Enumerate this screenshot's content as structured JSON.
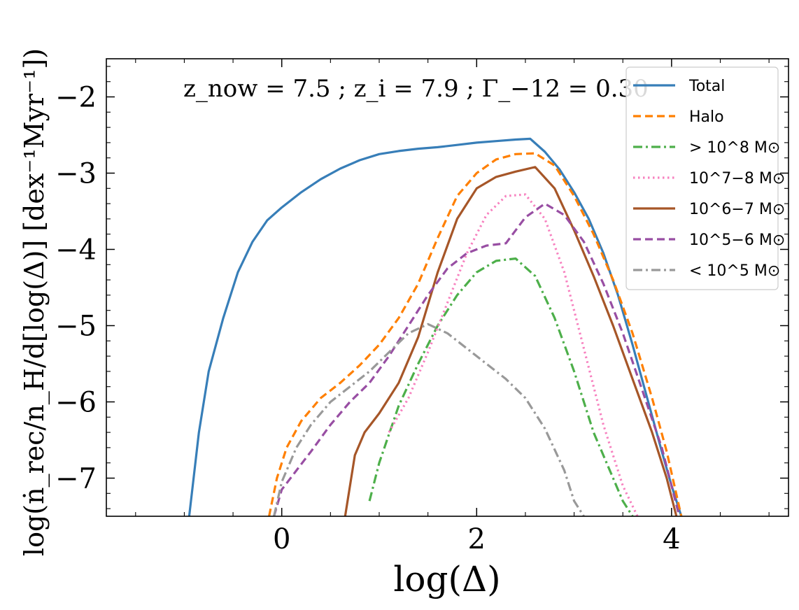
{
  "chart_data": {
    "type": "line",
    "xlabel": "log(Δ)",
    "ylabel": "log(ṅ_rec/n_H/d[log(Δ)] [dex⁻¹Myr⁻¹])",
    "annotation": "z_now = 7.5 ; z_i = 7.9 ; Γ_−12 = 0.30",
    "xlim": [
      -1.8,
      5.2
    ],
    "ylim": [
      -7.5,
      -1.5
    ],
    "xticks": [
      0,
      2,
      4
    ],
    "xtick_labels": [
      "0",
      "2",
      "4"
    ],
    "yticks": [
      -7,
      -6,
      -5,
      -4,
      -3,
      -2
    ],
    "ytick_labels": [
      "−7",
      "−6",
      "−5",
      "−4",
      "−3",
      "−2"
    ],
    "legend_position": "top-right",
    "grid": false,
    "series": [
      {
        "name": "Total",
        "color": "#377eb8",
        "style": "solid",
        "x": [
          -0.95,
          -0.85,
          -0.75,
          -0.6,
          -0.45,
          -0.3,
          -0.15,
          0.0,
          0.2,
          0.4,
          0.6,
          0.8,
          1.0,
          1.2,
          1.4,
          1.6,
          1.8,
          2.0,
          2.2,
          2.4,
          2.55,
          2.7,
          2.85,
          3.0,
          3.15,
          3.3,
          3.45,
          3.6,
          3.75,
          3.9,
          4.0,
          4.1
        ],
        "y": [
          -7.5,
          -6.4,
          -5.6,
          -4.9,
          -4.3,
          -3.9,
          -3.62,
          -3.45,
          -3.25,
          -3.08,
          -2.94,
          -2.83,
          -2.75,
          -2.71,
          -2.68,
          -2.66,
          -2.63,
          -2.6,
          -2.58,
          -2.56,
          -2.55,
          -2.72,
          -2.95,
          -3.25,
          -3.6,
          -4.05,
          -4.6,
          -5.25,
          -5.95,
          -6.65,
          -7.1,
          -7.5
        ]
      },
      {
        "name": "Halo",
        "color": "#ff7f00",
        "style": "dashed",
        "x": [
          -0.13,
          -0.05,
          0.05,
          0.2,
          0.4,
          0.6,
          0.8,
          1.0,
          1.2,
          1.4,
          1.6,
          1.8,
          2.0,
          2.2,
          2.4,
          2.6,
          2.8,
          3.0,
          3.2,
          3.4,
          3.6,
          3.8,
          3.95,
          4.1
        ],
        "y": [
          -7.5,
          -7.0,
          -6.6,
          -6.25,
          -5.95,
          -5.75,
          -5.52,
          -5.25,
          -4.9,
          -4.45,
          -3.85,
          -3.3,
          -3.0,
          -2.82,
          -2.75,
          -2.74,
          -2.9,
          -3.3,
          -3.8,
          -4.4,
          -5.1,
          -5.95,
          -6.65,
          -7.5
        ]
      },
      {
        "name": "> 10^8 M⊙",
        "color": "#4daf4a",
        "style": "dashdot",
        "x": [
          0.9,
          1.0,
          1.2,
          1.4,
          1.6,
          1.8,
          2.0,
          2.2,
          2.4,
          2.6,
          2.8,
          3.0,
          3.2,
          3.4,
          3.5,
          3.6
        ],
        "y": [
          -7.3,
          -6.8,
          -6.05,
          -5.5,
          -5.0,
          -4.6,
          -4.3,
          -4.15,
          -4.12,
          -4.35,
          -4.9,
          -5.6,
          -6.4,
          -7.0,
          -7.3,
          -7.5
        ]
      },
      {
        "name": "10^7−8 M⊙",
        "color": "#f781bf",
        "style": "dotted",
        "x": [
          1.1,
          1.3,
          1.5,
          1.7,
          1.9,
          2.1,
          2.3,
          2.5,
          2.7,
          2.9,
          3.1,
          3.3,
          3.5,
          3.65
        ],
        "y": [
          -6.4,
          -5.95,
          -5.35,
          -4.7,
          -4.05,
          -3.55,
          -3.3,
          -3.28,
          -3.6,
          -4.3,
          -5.3,
          -6.3,
          -7.1,
          -7.5
        ]
      },
      {
        "name": "10^6−7 M⊙",
        "color": "#a65628",
        "style": "solid",
        "x": [
          0.65,
          0.75,
          0.85,
          1.0,
          1.2,
          1.4,
          1.6,
          1.8,
          2.0,
          2.2,
          2.4,
          2.6,
          2.8,
          3.0,
          3.2,
          3.4,
          3.6,
          3.8,
          3.95,
          4.05
        ],
        "y": [
          -7.5,
          -6.7,
          -6.4,
          -6.15,
          -5.75,
          -5.15,
          -4.3,
          -3.6,
          -3.2,
          -3.05,
          -2.98,
          -2.92,
          -3.2,
          -3.75,
          -4.35,
          -5.0,
          -5.7,
          -6.4,
          -7.0,
          -7.5
        ]
      },
      {
        "name": "10^5−6 M⊙",
        "color": "#984ea3",
        "style": "dashed",
        "x": [
          -0.08,
          0.0,
          0.15,
          0.3,
          0.5,
          0.7,
          0.9,
          1.1,
          1.3,
          1.5,
          1.7,
          1.9,
          2.1,
          2.3,
          2.5,
          2.7,
          2.9,
          3.1,
          3.3,
          3.5,
          3.7,
          3.9,
          4.08
        ],
        "y": [
          -7.5,
          -7.15,
          -6.9,
          -6.65,
          -6.3,
          -6.0,
          -5.75,
          -5.4,
          -5.0,
          -4.6,
          -4.25,
          -4.05,
          -3.95,
          -3.92,
          -3.58,
          -3.4,
          -3.55,
          -3.9,
          -4.45,
          -5.1,
          -5.85,
          -6.6,
          -7.5
        ]
      },
      {
        "name": "< 10^5 M⊙",
        "color": "#999999",
        "style": "dashdot",
        "x": [
          -0.08,
          0.0,
          0.15,
          0.3,
          0.5,
          0.7,
          0.9,
          1.1,
          1.3,
          1.5,
          1.7,
          1.9,
          2.1,
          2.3,
          2.5,
          2.7,
          2.9,
          3.0,
          3.1
        ],
        "y": [
          -7.5,
          -7.05,
          -6.6,
          -6.3,
          -6.0,
          -5.8,
          -5.6,
          -5.35,
          -5.1,
          -4.98,
          -5.1,
          -5.3,
          -5.5,
          -5.7,
          -5.95,
          -6.35,
          -6.9,
          -7.3,
          -7.5
        ]
      }
    ]
  }
}
